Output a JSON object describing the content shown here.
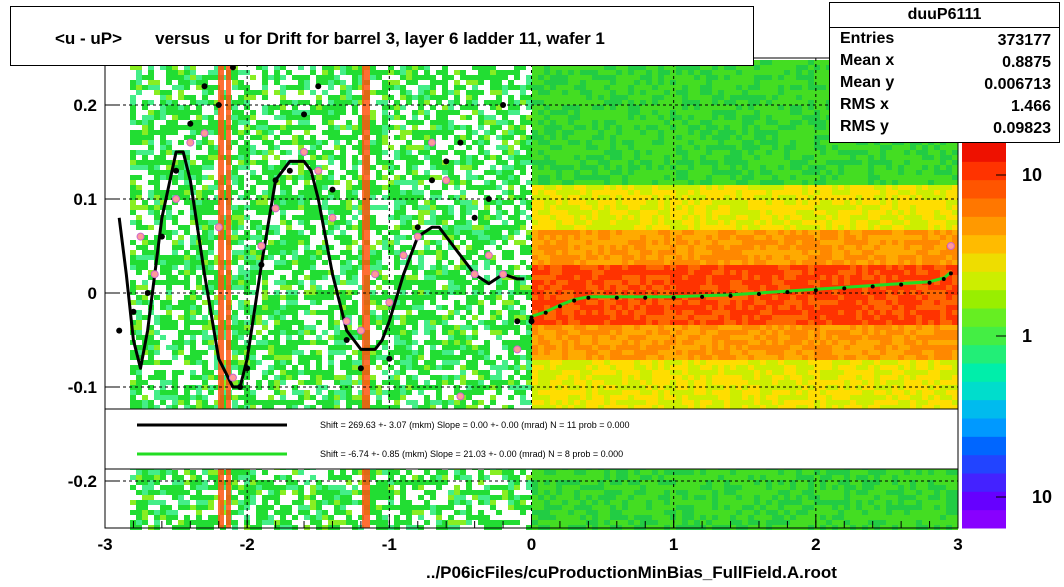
{
  "title": "<u - uP>       versus   u for Drift for barrel 3, layer 6 ladder 11, wafer 1",
  "stats": {
    "name": "duuP6111",
    "rows": [
      {
        "key": "Entries",
        "value": "373177"
      },
      {
        "key": "Mean x",
        "value": "0.8875"
      },
      {
        "key": "Mean y",
        "value": "0.006713"
      },
      {
        "key": "RMS x",
        "value": "1.466"
      },
      {
        "key": "RMS y",
        "value": "0.09823"
      }
    ]
  },
  "legend": {
    "entries": [
      {
        "color": "#000000",
        "text": "Shift =   269.63 +- 3.07 (mkm) Slope =     0.00 +- 0.00 (mrad)  N = 11 prob = 0.000"
      },
      {
        "color": "#22dd22",
        "text": "Shift =    -6.74 +- 0.85 (mkm) Slope =    21.03 +- 0.00 (mrad)  N = 8 prob = 0.000"
      }
    ]
  },
  "xlabel": "../P06icFiles/cuProductionMinBias_FullField.A.root",
  "chart_data": {
    "type": "heatmap",
    "xlim": [
      -3,
      3
    ],
    "ylim": [
      -0.25,
      0.25
    ],
    "x_ticks": [
      "-3",
      "-2",
      "-1",
      "0",
      "1",
      "2",
      "3"
    ],
    "y_ticks": [
      "-0.2",
      "-0.1",
      "0",
      "0.1",
      "0.2"
    ],
    "colorbar": {
      "scale": "log",
      "ticks": [
        "10",
        "1",
        "10"
      ]
    },
    "grid": true,
    "series": [
      {
        "style": "black-curve",
        "x": [
          -2.9,
          -2.85,
          -2.8,
          -2.75,
          -2.7,
          -2.6,
          -2.5,
          -2.45,
          -2.4,
          -2.3,
          -2.2,
          -2.1,
          -2.05,
          -2.0,
          -1.9,
          -1.8,
          -1.7,
          -1.6,
          -1.55,
          -1.5,
          -1.4,
          -1.3,
          -1.2,
          -1.1,
          -1.05,
          -1.0,
          -0.9,
          -0.8,
          -0.7,
          -0.65,
          -0.6,
          -0.5,
          -0.4,
          -0.3,
          -0.2,
          -0.1,
          -0.05
        ],
        "y": [
          0.08,
          0.02,
          -0.05,
          -0.08,
          -0.04,
          0.08,
          0.15,
          0.15,
          0.12,
          0.02,
          -0.07,
          -0.1,
          -0.1,
          -0.07,
          0.03,
          0.12,
          0.14,
          0.14,
          0.13,
          0.1,
          0.02,
          -0.04,
          -0.06,
          -0.06,
          -0.05,
          -0.03,
          0.02,
          0.06,
          0.07,
          0.07,
          0.06,
          0.04,
          0.02,
          0.01,
          0.02,
          0.015,
          0.015
        ]
      },
      {
        "style": "green-curve",
        "x": [
          0.0,
          0.1,
          0.2,
          0.3,
          0.4,
          0.6,
          0.8,
          1.0,
          1.2,
          1.4,
          1.6,
          1.8,
          2.0,
          2.2,
          2.4,
          2.6,
          2.8,
          2.9,
          2.95
        ],
        "y": [
          -0.025,
          -0.02,
          -0.013,
          -0.007,
          -0.004,
          -0.004,
          -0.004,
          -0.004,
          -0.003,
          -0.002,
          0.0,
          0.002,
          0.004,
          0.006,
          0.008,
          0.01,
          0.012,
          0.016,
          0.022
        ]
      },
      {
        "style": "black-points",
        "x": [
          -2.9,
          -2.8,
          -2.7,
          -2.6,
          -2.5,
          -2.4,
          -2.3,
          -2.2,
          -2.1,
          -2.05,
          -2.0,
          -1.9,
          -1.8,
          -1.7,
          -1.6,
          -1.5,
          -1.4,
          -1.3,
          -1.2,
          -1.1,
          -1.0,
          -0.9,
          -0.8,
          -0.7,
          -0.6,
          -0.5,
          -0.4,
          -0.3,
          -0.2,
          -0.1,
          0.0
        ],
        "y": [
          -0.04,
          -0.02,
          0.0,
          0.06,
          0.13,
          0.18,
          0.22,
          0.2,
          0.24,
          -0.1,
          -0.08,
          0.03,
          0.12,
          0.13,
          0.19,
          0.22,
          0.11,
          -0.05,
          -0.08,
          0.02,
          -0.07,
          0.04,
          0.07,
          0.12,
          0.14,
          0.16,
          0.08,
          0.1,
          0.2,
          -0.03,
          -0.03
        ]
      },
      {
        "style": "pink-points",
        "x": [
          -2.75,
          -2.65,
          -2.5,
          -2.4,
          -2.3,
          -2.2,
          -2.1,
          -1.9,
          -1.8,
          -1.6,
          -1.5,
          -1.4,
          -1.3,
          -1.2,
          -1.1,
          -1.0,
          -0.9,
          -0.8,
          -0.7,
          -0.6,
          -0.5,
          -0.4,
          -0.3,
          -0.2,
          -0.1,
          2.95
        ],
        "y": [
          0.06,
          0.02,
          0.1,
          0.16,
          0.17,
          0.07,
          -0.09,
          0.05,
          0.09,
          0.15,
          0.13,
          0.08,
          -0.03,
          -0.04,
          0.02,
          -0.01,
          0.04,
          0.06,
          0.16,
          0.12,
          -0.11,
          0.02,
          0.04,
          0.02,
          -0.06,
          0.05
        ]
      }
    ]
  }
}
